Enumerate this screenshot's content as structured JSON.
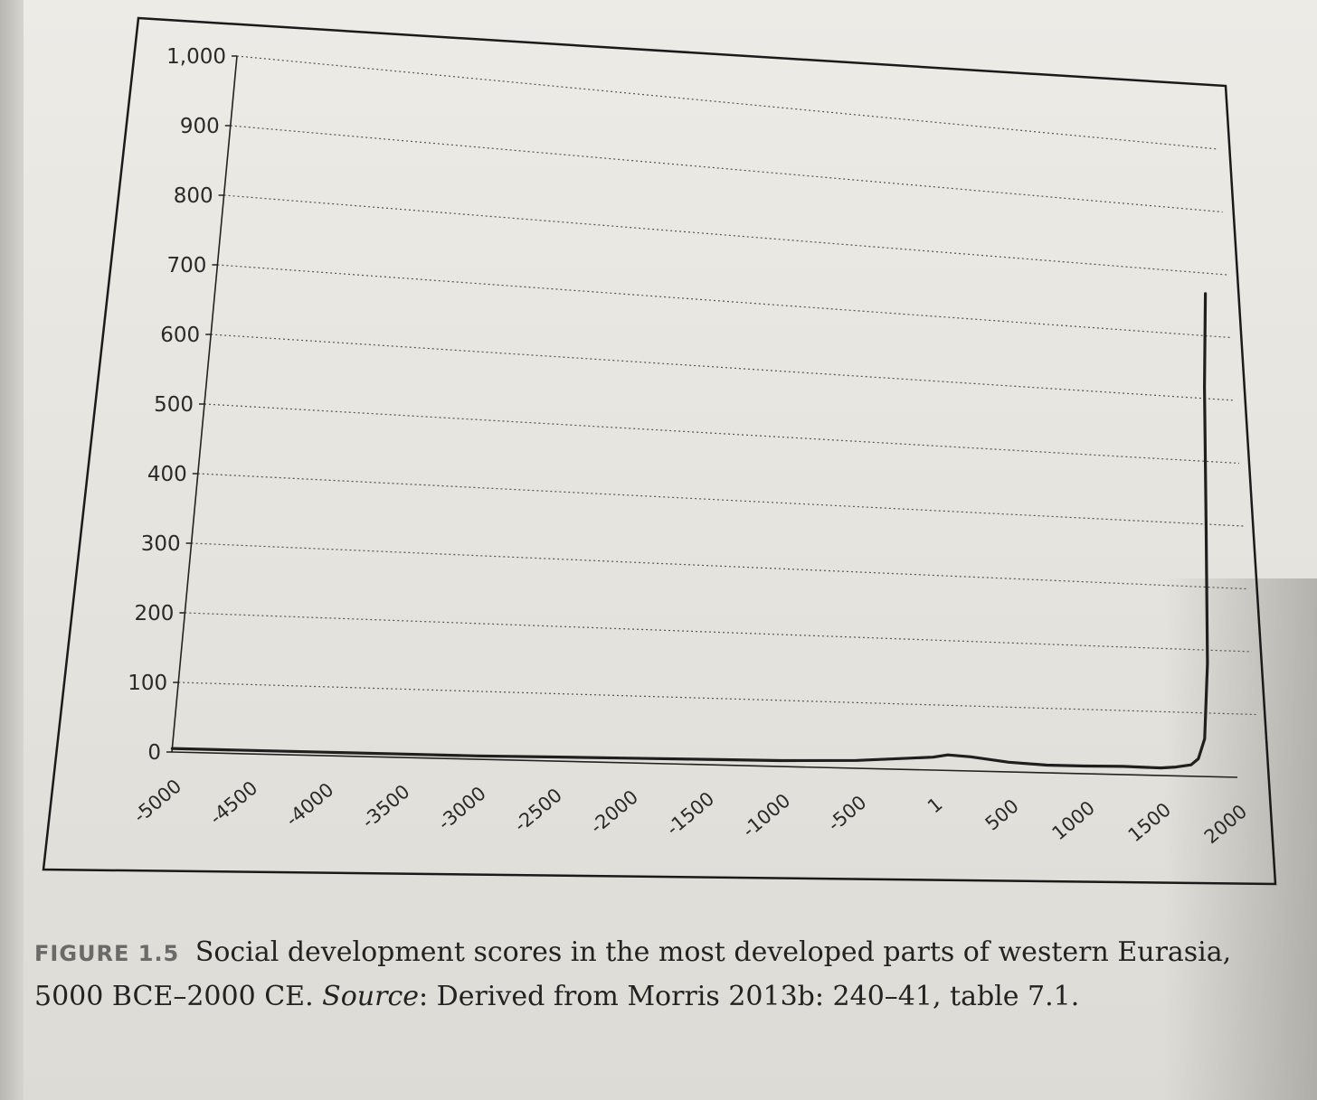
{
  "chart_data": {
    "type": "line",
    "title": "",
    "xlabel": "",
    "ylabel": "",
    "x": [
      -5000,
      -4500,
      -4000,
      -3500,
      -3000,
      -2500,
      -2000,
      -1500,
      -1000,
      -500,
      1,
      100,
      250,
      500,
      750,
      1000,
      1250,
      1500,
      1600,
      1700,
      1750,
      1800,
      1850,
      1900,
      1950,
      2000
    ],
    "series": [
      {
        "values": [
          5,
          5,
          5,
          5,
          5,
          6,
          7,
          8,
          9,
          12,
          20,
          24,
          22,
          15,
          12,
          12,
          13,
          12,
          14,
          18,
          28,
          60,
          180,
          400,
          620,
          770
        ]
      }
    ],
    "xlim": [
      -5000,
      2000
    ],
    "ylim": [
      0,
      1000
    ],
    "x_ticks": [
      "-5000",
      "-4500",
      "-4000",
      "-3500",
      "-3000",
      "-2500",
      "-2000",
      "-1500",
      "-1000",
      "-500",
      "1",
      "500",
      "1000",
      "1500",
      "2000"
    ],
    "y_ticks": [
      "0",
      "100",
      "200",
      "300",
      "400",
      "500",
      "600",
      "700",
      "800",
      "900",
      "1,000"
    ],
    "grid": "dotted horizontal",
    "line_color": "#1f1f1f"
  },
  "caption": {
    "label": "FIGURE 1.5",
    "text": "Social development scores in the most developed parts of western Eurasia, 5000 BCE–2000 CE.",
    "source_label": "Source",
    "source_text": ": Derived from Morris 2013b: 240–41, table 7.1."
  }
}
